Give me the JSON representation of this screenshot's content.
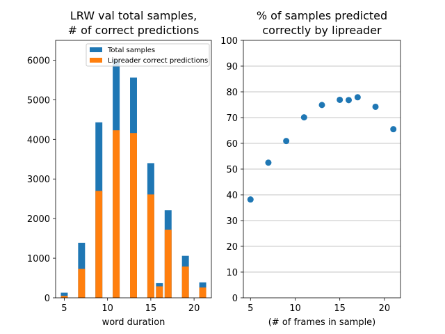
{
  "chart_data": [
    {
      "type": "bar",
      "stacked": false,
      "title_lines": [
        "LRW val total samples,",
        "# of correct predictions"
      ],
      "xlabel": "word duration",
      "ylabel": "",
      "xlim": [
        4,
        22
      ],
      "ylim": [
        0,
        6500
      ],
      "xticks": [
        5,
        10,
        15,
        20
      ],
      "yticks": [
        0,
        1000,
        2000,
        3000,
        4000,
        5000,
        6000
      ],
      "bar_width": 0.8,
      "grid": false,
      "legend_position": "top-right",
      "x": [
        5,
        7,
        9,
        11,
        13,
        15,
        16,
        17,
        19,
        21
      ],
      "series": [
        {
          "name": "Total samples",
          "color": "#1f77b4",
          "values": [
            130,
            1390,
            4430,
            6010,
            5560,
            3400,
            370,
            2210,
            1060,
            390
          ]
        },
        {
          "name": "Lipreader correct predictions",
          "color": "#ff7f0e",
          "values": [
            50,
            730,
            2700,
            4230,
            4160,
            2610,
            290,
            1720,
            790,
            260
          ]
        }
      ]
    },
    {
      "type": "scatter",
      "title_lines": [
        "% of samples predicted",
        "correctly by lipreader"
      ],
      "xlabel": "(# of frames in sample)",
      "ylabel": "",
      "xlim": [
        4.2,
        21.8
      ],
      "ylim": [
        0,
        100
      ],
      "xticks": [
        5,
        10,
        15,
        20
      ],
      "yticks": [
        0,
        10,
        20,
        30,
        40,
        50,
        60,
        70,
        80,
        90,
        100
      ],
      "grid": "y",
      "color": "#1f77b4",
      "x": [
        5,
        7,
        9,
        11,
        13,
        15,
        16,
        17,
        19,
        21
      ],
      "y": [
        38.2,
        52.5,
        60.9,
        70.1,
        74.9,
        76.9,
        76.8,
        77.9,
        74.2,
        65.5
      ]
    }
  ]
}
